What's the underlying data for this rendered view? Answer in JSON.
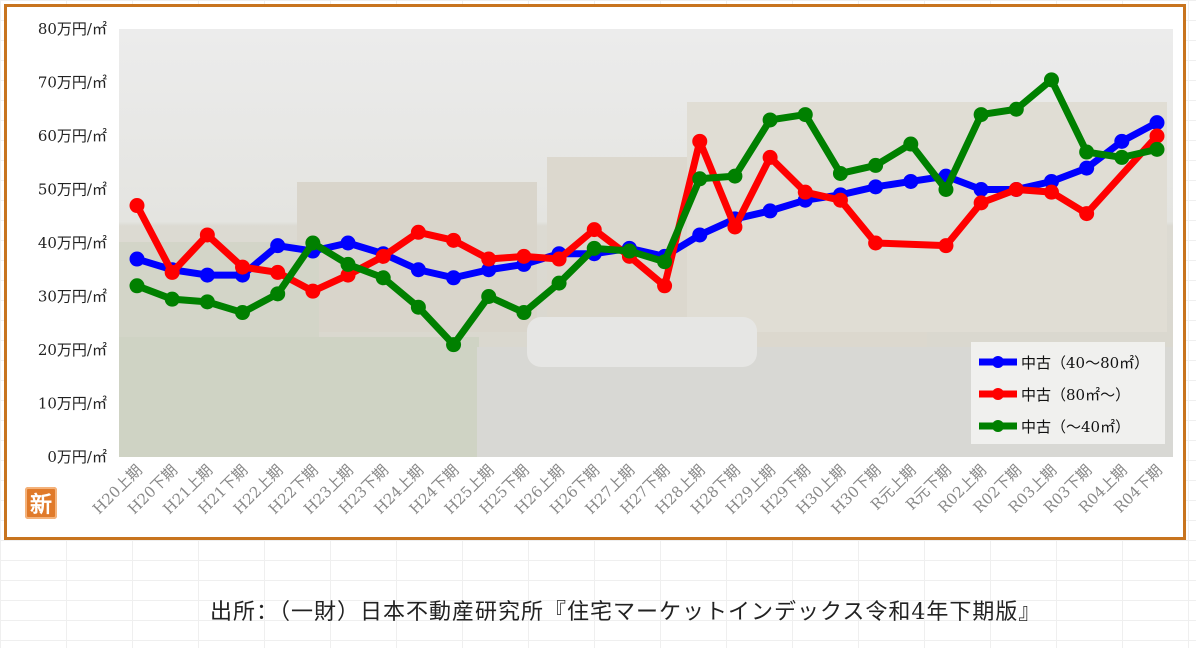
{
  "chart_data": {
    "type": "line",
    "categories": [
      "H20上期",
      "H20下期",
      "H21上期",
      "H21下期",
      "H22上期",
      "H22下期",
      "H23上期",
      "H23下期",
      "H24上期",
      "H24下期",
      "H25上期",
      "H25下期",
      "H26上期",
      "H26下期",
      "H27上期",
      "H27下期",
      "H28上期",
      "H28下期",
      "H29上期",
      "H29下期",
      "H30上期",
      "H30下期",
      "R元上期",
      "R元下期",
      "R02上期",
      "R02下期",
      "R03上期",
      "R03下期",
      "R04上期",
      "R04下期"
    ],
    "y_ticks": [
      "0万円/㎡",
      "10万円/㎡",
      "20万円/㎡",
      "30万円/㎡",
      "40万円/㎡",
      "50万円/㎡",
      "60万円/㎡",
      "70万円/㎡",
      "80万円/㎡"
    ],
    "ylim": [
      0,
      80
    ],
    "series": [
      {
        "name": "中古（40～80㎡）",
        "color": "#0000ff",
        "values": [
          37,
          35,
          34,
          34,
          39.5,
          38.5,
          40,
          38,
          35,
          33.5,
          35,
          36,
          38,
          38,
          39,
          37.5,
          41.5,
          44.5,
          46,
          48,
          49,
          50.5,
          51.5,
          52.5,
          50,
          50,
          51.5,
          54,
          59,
          62.5
        ]
      },
      {
        "name": "中古（80㎡～）",
        "color": "#ff0000",
        "values": [
          47,
          34.5,
          41.5,
          35.5,
          34.5,
          31,
          34,
          37.5,
          42,
          40.5,
          37,
          37.5,
          37,
          42.5,
          37.5,
          32,
          59,
          43,
          56,
          49.5,
          48,
          40,
          null,
          39.5,
          47.5,
          50,
          49.5,
          45.5,
          null,
          60
        ]
      },
      {
        "name": "中古（～40㎡）",
        "color": "#008000",
        "values": [
          32,
          29.5,
          29,
          27,
          30.5,
          40,
          36,
          33.5,
          28,
          21,
          30,
          27,
          32.5,
          39,
          38.5,
          36.5,
          52,
          52.5,
          63,
          64,
          53,
          54.5,
          58.5,
          50,
          64,
          65,
          70.5,
          57,
          56,
          57.5
        ]
      }
    ],
    "legend_position": "bottom-right",
    "grid": false
  },
  "badge": {
    "label": "新"
  },
  "source": "出所：（一財）日本不動産研究所『住宅マーケットインデックス令和4年下期版』"
}
